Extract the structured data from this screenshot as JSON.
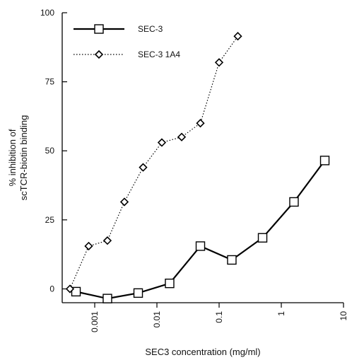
{
  "chart_data": {
    "type": "line",
    "title": "",
    "xlabel": "SEC3 concentration (mg/ml)",
    "ylabel_line1": "% inhibition of",
    "ylabel_line2": "scTCR-biotin binding",
    "x_scale": "log",
    "xlim": [
      0.0003,
      10
    ],
    "ylim": [
      -5,
      100
    ],
    "x_ticks": [
      {
        "value": 0.001,
        "label": "0.001"
      },
      {
        "value": 0.01,
        "label": "0.01"
      },
      {
        "value": 0.1,
        "label": "0.1"
      },
      {
        "value": 1,
        "label": "1"
      },
      {
        "value": 10,
        "label": "10"
      }
    ],
    "y_ticks": [
      {
        "value": 0,
        "label": "0"
      },
      {
        "value": 25,
        "label": "25"
      },
      {
        "value": 50,
        "label": "50"
      },
      {
        "value": 75,
        "label": "75"
      },
      {
        "value": 100,
        "label": "100"
      }
    ],
    "grid": false,
    "legend_position": "top-left",
    "series": [
      {
        "name": "SEC-3",
        "marker": "square",
        "line_style": "solid",
        "color": "#000000",
        "points": [
          {
            "x": 0.0005,
            "y": -1
          },
          {
            "x": 0.0016,
            "y": -3.5
          },
          {
            "x": 0.005,
            "y": -1.5
          },
          {
            "x": 0.016,
            "y": 2
          },
          {
            "x": 0.05,
            "y": 15.5
          },
          {
            "x": 0.16,
            "y": 10.5
          },
          {
            "x": 0.5,
            "y": 18.5
          },
          {
            "x": 1.6,
            "y": 31.5
          },
          {
            "x": 5,
            "y": 46.5
          }
        ]
      },
      {
        "name": "SEC-3 1A4",
        "marker": "diamond",
        "line_style": "dotted",
        "color": "#000000",
        "points": [
          {
            "x": 0.0004,
            "y": 0
          },
          {
            "x": 0.0008,
            "y": 15.5
          },
          {
            "x": 0.0016,
            "y": 17.5
          },
          {
            "x": 0.003,
            "y": 31.5
          },
          {
            "x": 0.006,
            "y": 44
          },
          {
            "x": 0.012,
            "y": 53
          },
          {
            "x": 0.025,
            "y": 55
          },
          {
            "x": 0.05,
            "y": 60
          },
          {
            "x": 0.1,
            "y": 82
          },
          {
            "x": 0.2,
            "y": 91.5
          }
        ]
      }
    ]
  }
}
